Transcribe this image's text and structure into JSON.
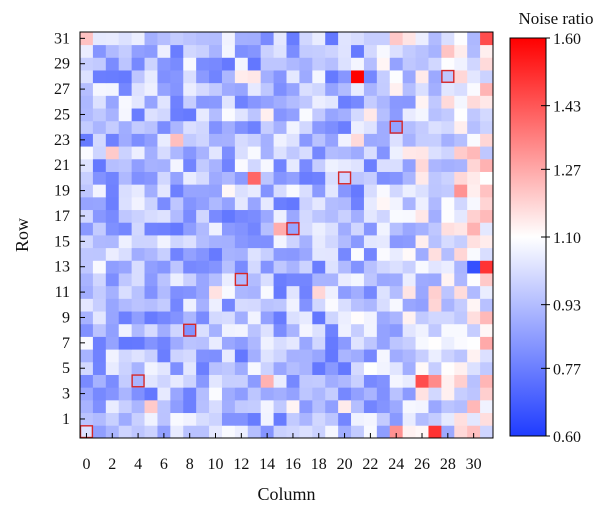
{
  "chart_data": {
    "type": "heatmap",
    "xlabel": "Column",
    "ylabel": "Row",
    "colorbar_label": "Noise ratio",
    "colorbar_ticks": [
      "1.60",
      "1.43",
      "1.27",
      "1.10",
      "0.93",
      "0.77",
      "0.60"
    ],
    "x_ticks": [
      "0",
      "2",
      "4",
      "6",
      "8",
      "10",
      "12",
      "14",
      "16",
      "18",
      "20",
      "22",
      "24",
      "26",
      "28",
      "30"
    ],
    "y_ticks": [
      "1",
      "3",
      "5",
      "7",
      "9",
      "11",
      "13",
      "15",
      "17",
      "19",
      "21",
      "23",
      "25",
      "27",
      "29",
      "31"
    ],
    "value_range": [
      0.6,
      1.6
    ],
    "colormap": {
      "low": "#1f3cff",
      "mid": "#ffffff",
      "high": "#ff0000"
    },
    "highlight_color": "#d62728",
    "grid": false,
    "n_rows": 32,
    "n_cols": 32,
    "highlighted_cells": [
      [
        0,
        0
      ],
      [
        4,
        4
      ],
      [
        8,
        8
      ],
      [
        12,
        12
      ],
      [
        16,
        16
      ],
      [
        20,
        20
      ],
      [
        24,
        24
      ],
      [
        28,
        28
      ]
    ],
    "notable_cells": [
      {
        "col": 21,
        "row": 28,
        "value": 1.6
      },
      {
        "col": 31,
        "row": 31,
        "value": 1.45
      },
      {
        "col": 27,
        "row": 0,
        "value": 1.5
      },
      {
        "col": 26,
        "row": 4,
        "value": 1.45
      },
      {
        "col": 31,
        "row": 13,
        "value": 1.5
      },
      {
        "col": 30,
        "row": 13,
        "value": 0.65
      },
      {
        "col": 13,
        "row": 20,
        "value": 1.4
      }
    ],
    "seed": 20240517
  }
}
